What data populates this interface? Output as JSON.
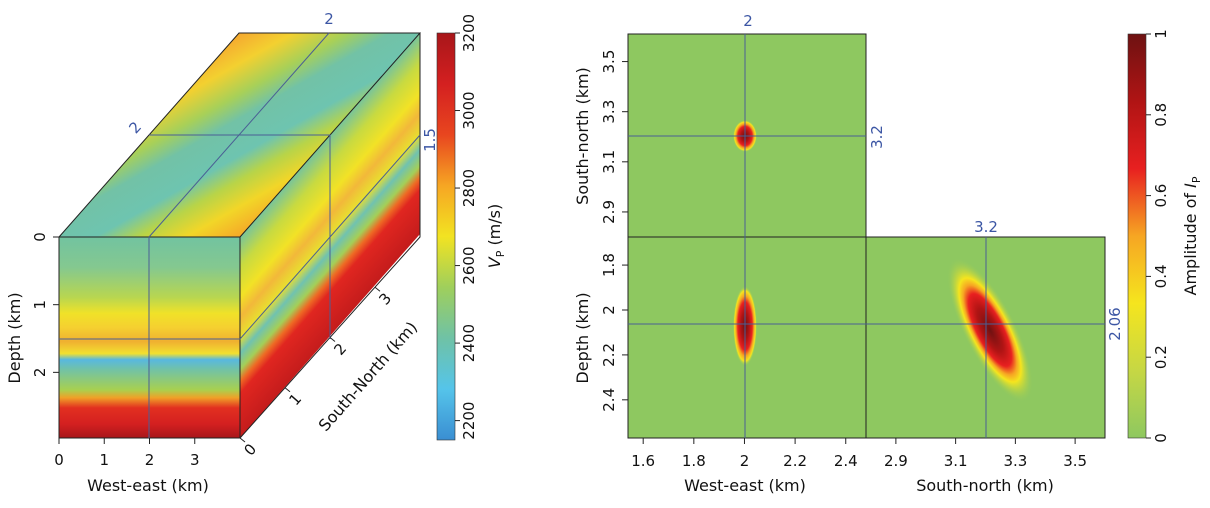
{
  "chart_data": [
    {
      "type": "heatmap",
      "subtype": "3d-cube-slices",
      "axes": {
        "x": {
          "label": "West-east (km)",
          "ticks": [
            "0",
            "1",
            "2",
            "3"
          ],
          "range": [
            0,
            4
          ]
        },
        "depth": {
          "label": "Depth (km)",
          "ticks": [
            "0",
            "1",
            "2"
          ],
          "range": [
            0,
            2.97
          ]
        },
        "y": {
          "label": "South-North (km)",
          "ticks": [
            "0",
            "1",
            "2",
            "3"
          ],
          "range": [
            0,
            4
          ]
        }
      },
      "slices": {
        "west_east": 2,
        "south_north": 2,
        "depth": 1.5
      },
      "slice_labels": {
        "west_east": "2",
        "south_north": "2",
        "depth": "1.5"
      },
      "colorbar": {
        "label_main": "V",
        "label_sub": "P",
        "label_unit": " (m/s)",
        "ticks": [
          "2200",
          "2400",
          "2600",
          "2800",
          "3000",
          "3200"
        ],
        "range": [
          2150,
          3200
        ],
        "colors": [
          "#3a8ed2",
          "#55c4ea",
          "#6fc2a6",
          "#9fcf5c",
          "#f2e322",
          "#f6a623",
          "#e8461f",
          "#d42020",
          "#a8161a"
        ]
      }
    },
    {
      "type": "heatmap",
      "subtype": "orthogonal-slices",
      "panels": {
        "top_left": {
          "xlabel": "",
          "ylabel": "South-north (km)",
          "yticks": [
            "2.9",
            "3.1",
            "3.3",
            "3.5"
          ],
          "yrange": [
            2.8,
            3.61
          ]
        },
        "bottom_left": {
          "xlabel": "West-east (km)",
          "ylabel": "Depth (km)",
          "xticks": [
            "1.6",
            "1.8",
            "2",
            "2.2",
            "2.4"
          ],
          "xrange": [
            1.54,
            2.48
          ],
          "yticks": [
            "1.8",
            "2",
            "2.2",
            "2.4"
          ],
          "yrange": [
            1.675,
            2.57
          ]
        },
        "bottom_right": {
          "xlabel": "South-north (km)",
          "xticks": [
            "2.9",
            "3.1",
            "3.3",
            "3.5"
          ],
          "xrange": [
            2.8,
            3.6
          ]
        }
      },
      "crosshair": {
        "west_east": 2,
        "south_north": 3.2,
        "depth": 2.06
      },
      "crosshair_labels": {
        "west_east": "2",
        "south_north_side": "3.2",
        "south_north_top": "3.2",
        "depth": "2.06"
      },
      "peaks": [
        {
          "panel": "top_left",
          "x": 2.0,
          "y": 3.2,
          "amplitude": 1
        },
        {
          "panel": "bottom_left",
          "x": 2.0,
          "y": 2.06,
          "amplitude": 1
        },
        {
          "panel": "bottom_right",
          "x": 3.2,
          "y": 2.06,
          "amplitude": 1
        }
      ],
      "colorbar": {
        "label_main": "Amplitude of ",
        "label_italic": "I",
        "label_sub": "P",
        "ticks": [
          "0",
          "0.2",
          "0.4",
          "0.6",
          "0.8",
          "1"
        ],
        "range": [
          0,
          1
        ],
        "colors": [
          "#8ec860",
          "#c6d744",
          "#f5e51e",
          "#f6a623",
          "#e82020",
          "#b01414",
          "#6e1212"
        ]
      }
    }
  ]
}
